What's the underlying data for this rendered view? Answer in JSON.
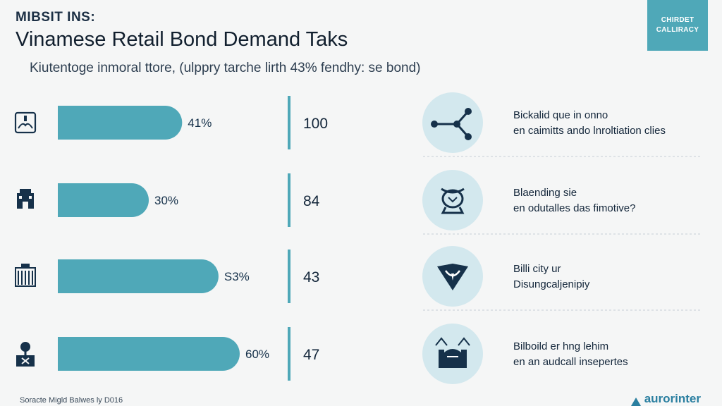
{
  "header": {
    "kicker": "MIBSIT INS:",
    "title": "Vinamese Retail Bond Demand Taks",
    "subtitle": "Kiutentoge inmoral ttore, (ulppry tarche lirth 43% fendhy: se bond)"
  },
  "corner_badge": {
    "line1": "CHIRDET",
    "line2": "CALLIRACY"
  },
  "chart_data": {
    "type": "bar",
    "orientation": "horizontal",
    "categories": [
      "row-1",
      "row-2",
      "row-3",
      "row-4"
    ],
    "values": [
      41,
      30,
      53,
      60
    ],
    "value_labels": [
      "41%",
      "30%",
      "S3%",
      "60%"
    ],
    "numbers": [
      "100",
      "84",
      "43",
      "47"
    ],
    "xlim": [
      0,
      100
    ],
    "bar_color": "#4fa8b8",
    "grid": false
  },
  "rows": [
    {
      "icon": "scale-icon",
      "desc_title": "Bickalid que in onno",
      "desc_body": "en caimitts ando lnroltiation clies",
      "side_icon": "network-nodes-icon"
    },
    {
      "icon": "building-icon",
      "desc_title": "Blaending sie",
      "desc_body": "en odutalles das fimotive?",
      "side_icon": "gauge-head-icon"
    },
    {
      "icon": "bank-icon",
      "desc_title": "Billi city ur",
      "desc_body": "Disungcaljenipiy",
      "side_icon": "shield-chevron-icon"
    },
    {
      "icon": "tree-box-icon",
      "desc_title": "Bilboild er hng lehim",
      "desc_body": "en an audcall insepertes",
      "side_icon": "castle-icon"
    }
  ],
  "footer": {
    "source": "Soracte Migld Balwes ly D016",
    "brand": "aurorinter"
  },
  "colors": {
    "accent": "#4fa8b8",
    "circle": "#d3e8ee",
    "dark": "#16314a",
    "divider": "#c6cfd6"
  }
}
